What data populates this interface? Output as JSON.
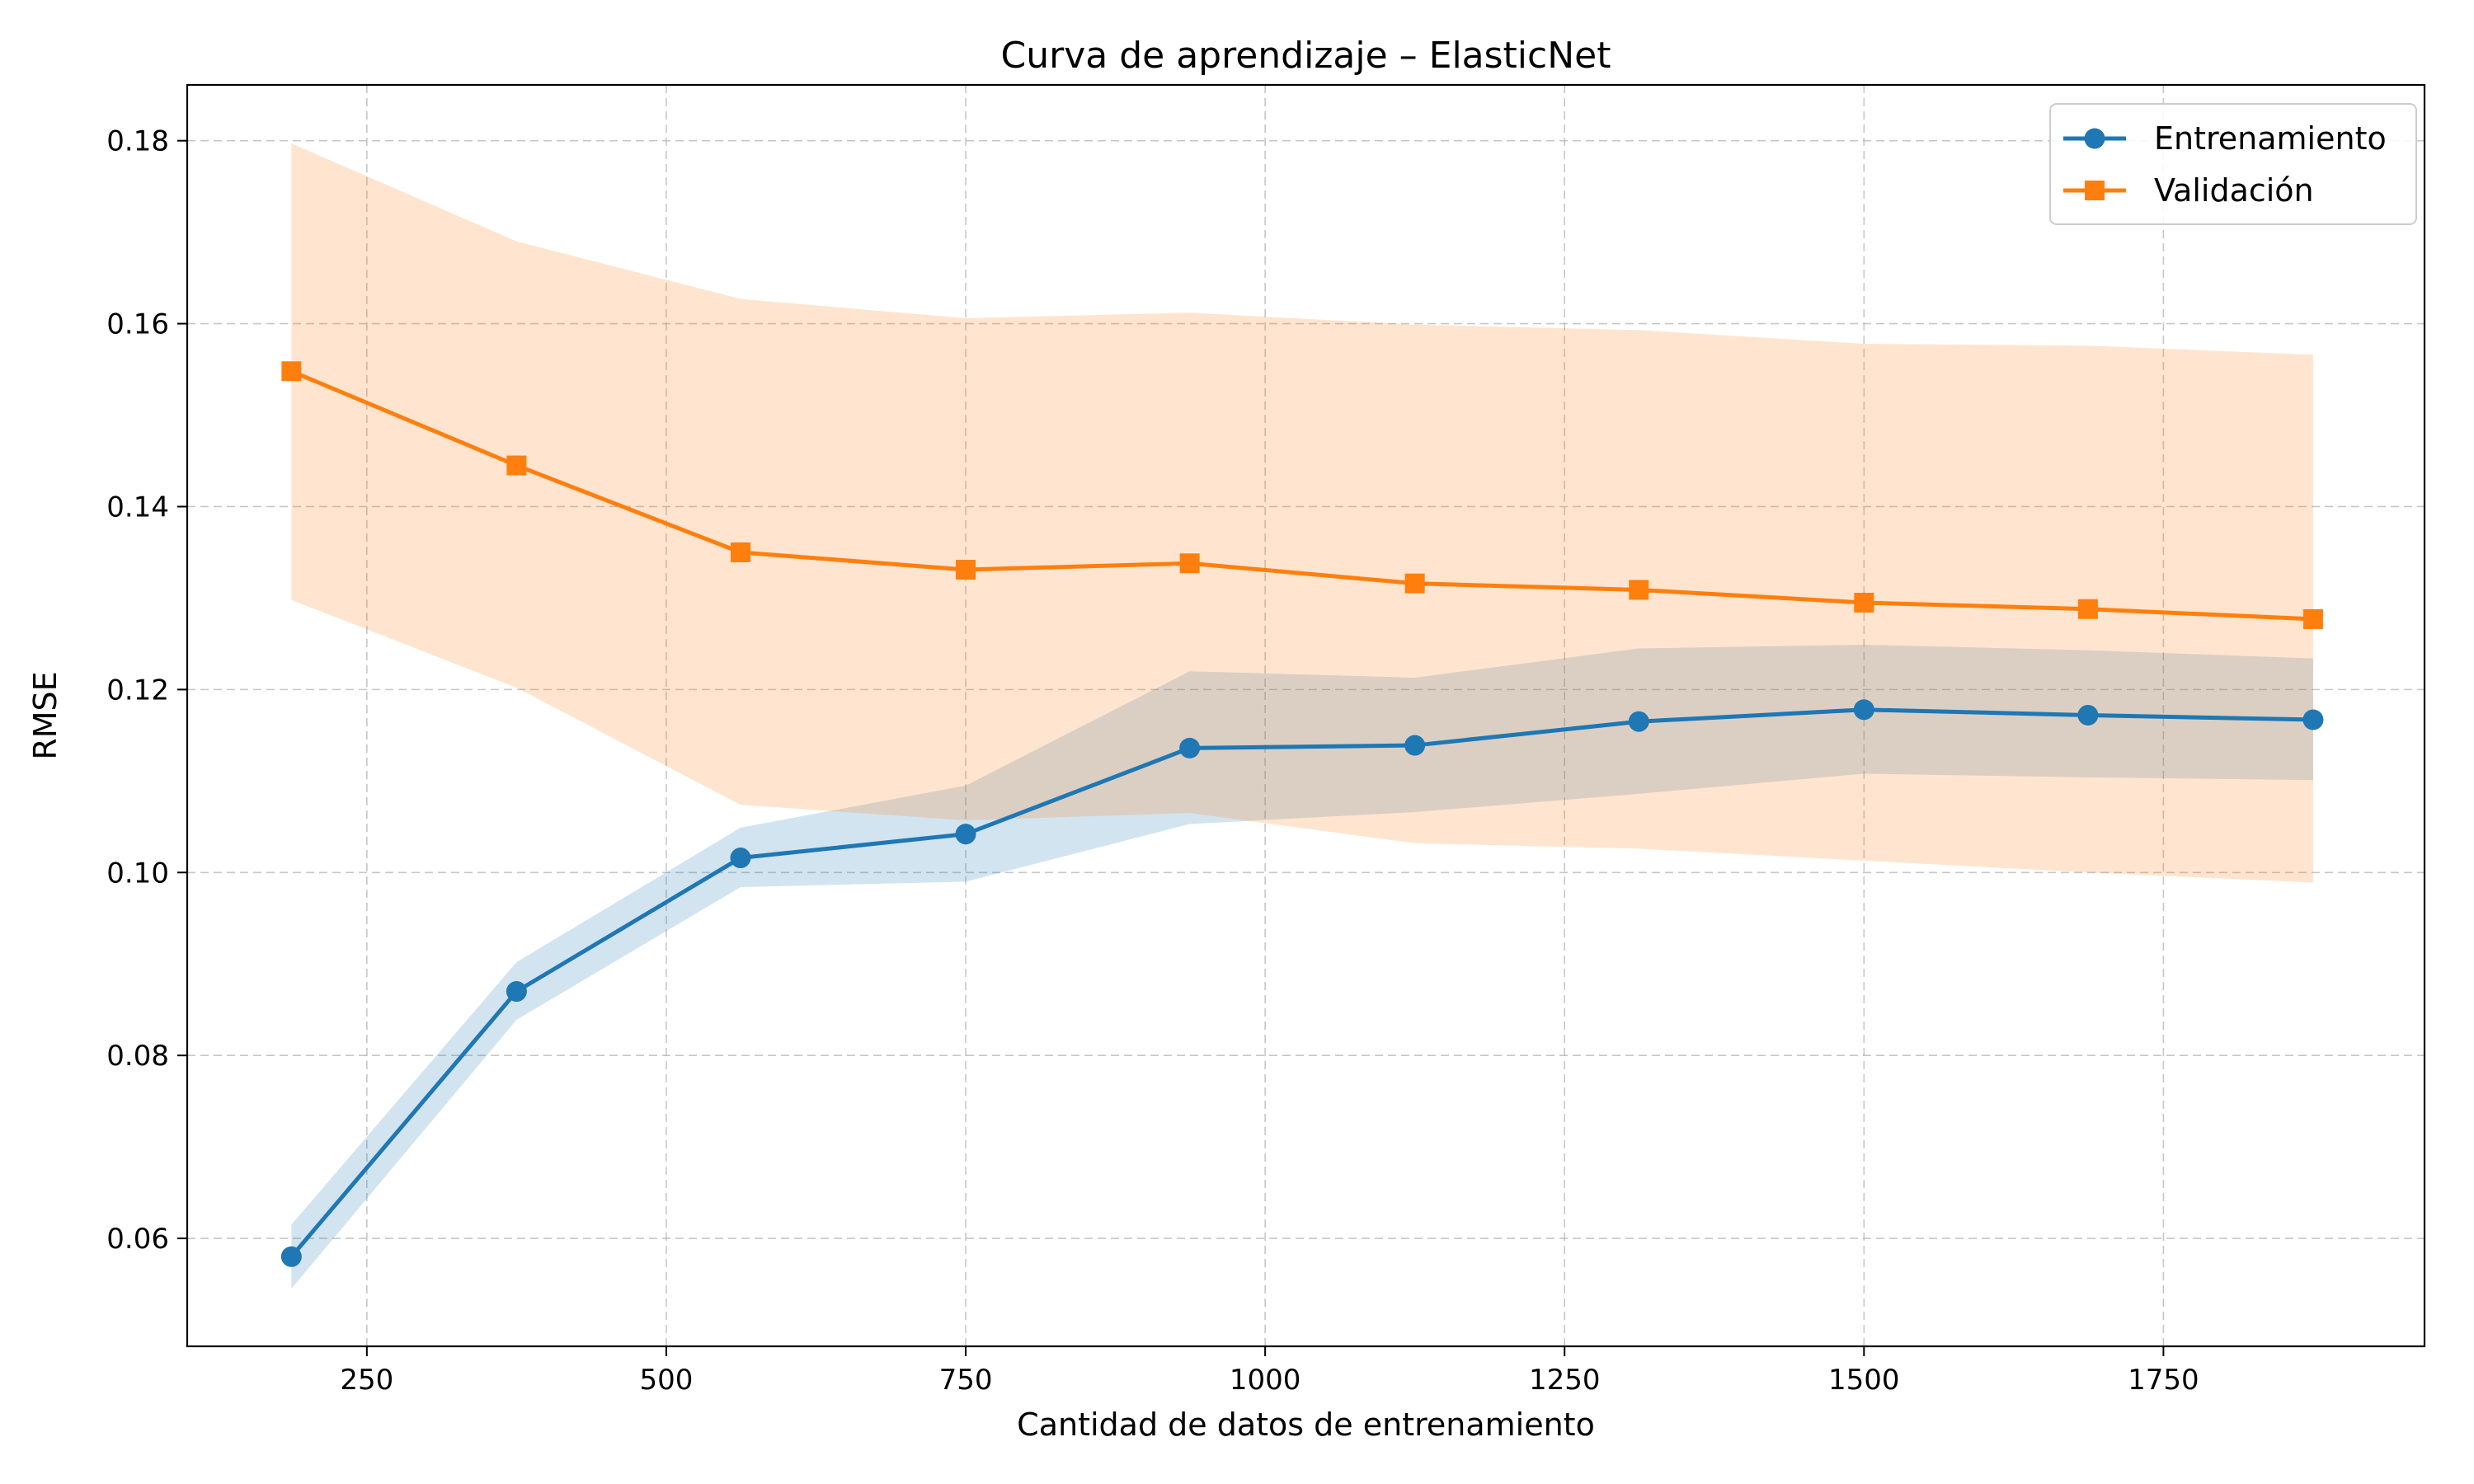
{
  "chart_data": {
    "type": "line",
    "title": "Curva de aprendizaje – ElasticNet",
    "xlabel": "Cantidad de datos de entrenamiento",
    "ylabel": "RMSE",
    "xlim": [
      100,
      1968
    ],
    "ylim": [
      0.0482,
      0.1861
    ],
    "xticks": [
      250,
      500,
      750,
      1000,
      1250,
      1500,
      1750
    ],
    "yticks": [
      0.06,
      0.08,
      0.1,
      0.12,
      0.14,
      0.16,
      0.18
    ],
    "xtick_labels": [
      "250",
      "500",
      "750",
      "1000",
      "1250",
      "1500",
      "1750"
    ],
    "ytick_labels": [
      "0.06",
      "0.08",
      "0.10",
      "0.12",
      "0.14",
      "0.16",
      "0.18"
    ],
    "grid": true,
    "legend_position": "top-right",
    "x": [
      187,
      375,
      562,
      750,
      937,
      1125,
      1312,
      1500,
      1687,
      1875
    ],
    "series": [
      {
        "name": "Entrenamiento",
        "color": "#1f77b4",
        "fill_color": "#1f77b4",
        "marker": "circle",
        "values": [
          0.058,
          0.087,
          0.1016,
          0.1042,
          0.1136,
          0.1139,
          0.1165,
          0.1178,
          0.1172,
          0.1167
        ],
        "band_upper": [
          0.0615,
          0.0902,
          0.1049,
          0.1095,
          0.122,
          0.1213,
          0.1245,
          0.1249,
          0.1243,
          0.1234
        ],
        "band_lower": [
          0.0545,
          0.0839,
          0.0984,
          0.099,
          0.1053,
          0.1066,
          0.1086,
          0.1108,
          0.1104,
          0.1101
        ]
      },
      {
        "name": "Validación",
        "color": "#ff7f0e",
        "fill_color": "#ff7f0e",
        "marker": "square",
        "values": [
          0.1548,
          0.1445,
          0.135,
          0.1331,
          0.1338,
          0.1316,
          0.1309,
          0.1295,
          0.1288,
          0.1277
        ],
        "band_upper": [
          0.1797,
          0.169,
          0.1627,
          0.1606,
          0.1612,
          0.1599,
          0.1593,
          0.1578,
          0.1576,
          0.1566
        ],
        "band_lower": [
          0.1298,
          0.1202,
          0.1074,
          0.1057,
          0.1065,
          0.1032,
          0.1026,
          0.1013,
          0.1,
          0.0989
        ]
      }
    ]
  }
}
